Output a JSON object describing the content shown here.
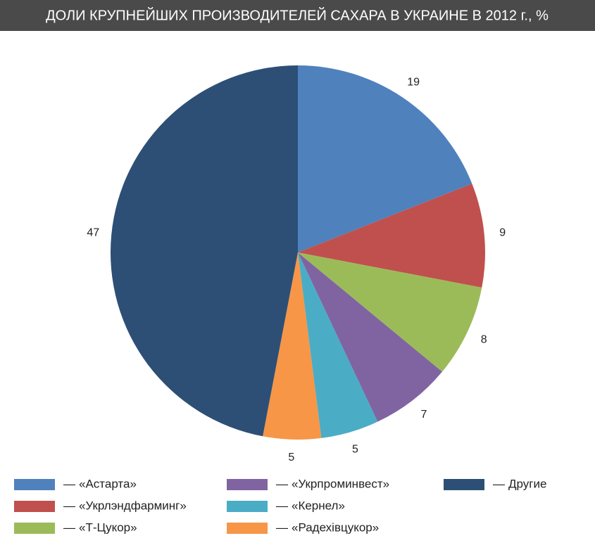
{
  "chart_data": {
    "type": "pie",
    "title": "ДОЛИ КРУПНЕЙШИХ ПРОИЗВОДИТЕЛЕЙ САХАРА В УКРАИНЕ В 2012 г., %",
    "categories": [
      "«Астарта»",
      "«Укрлэндфарминг»",
      "«Т-Цукор»",
      "«Укрпроминвест»",
      "«Кернел»",
      "«Радехівцукор»",
      "Другие"
    ],
    "values": [
      19,
      9,
      8,
      7,
      5,
      5,
      47
    ],
    "colors": [
      "#4f81bd",
      "#c0504d",
      "#9bbb59",
      "#8064a2",
      "#4bacc6",
      "#f79646",
      "#2d4f76"
    ],
    "legend_dash": "—",
    "legend_position": "bottom"
  }
}
